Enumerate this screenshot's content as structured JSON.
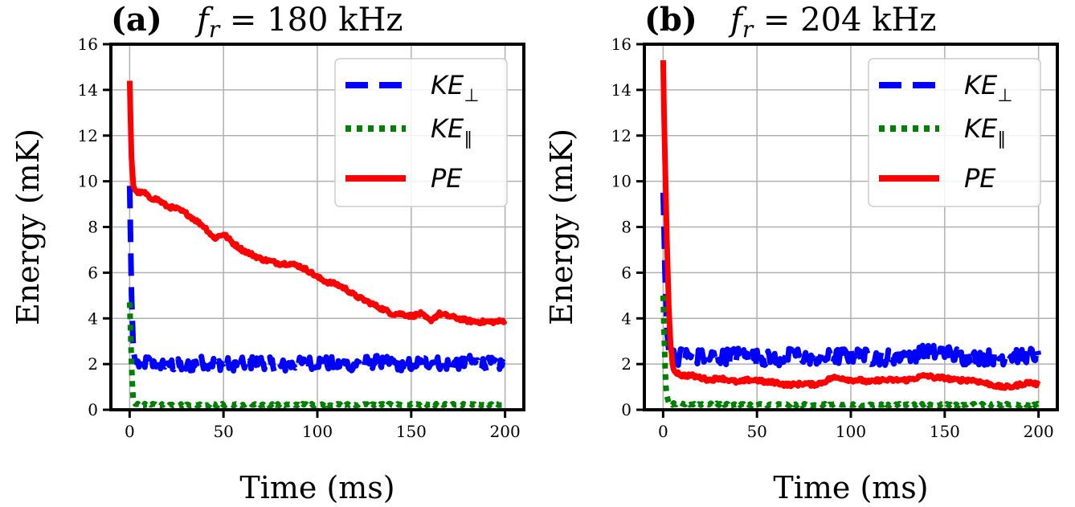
{
  "chart_data": [
    {
      "type": "line",
      "panel_label": "(a)",
      "title_var": "f",
      "title_sub": "r",
      "title_value": " = 180 kHz",
      "xlabel": "Time (ms)",
      "ylabel": "Energy (mK)",
      "xlim": [
        -10,
        210
      ],
      "ylim": [
        0,
        16
      ],
      "xticks": [
        "0",
        "50",
        "100",
        "150",
        "200"
      ],
      "yticks": [
        "0",
        "2",
        "4",
        "6",
        "8",
        "10",
        "12",
        "14",
        "16"
      ],
      "grid": true,
      "legend_position": "top-right",
      "series": [
        {
          "name": "KE",
          "name_sub": "⊥",
          "color": "#0000ff",
          "style": "dashed",
          "x": [
            0,
            0.5,
            1,
            1.5,
            2,
            3,
            5,
            10,
            20,
            30,
            40,
            50,
            60,
            70,
            80,
            90,
            100,
            110,
            120,
            130,
            140,
            150,
            160,
            170,
            180,
            190,
            200
          ],
          "y": [
            9.8,
            7.5,
            5.0,
            3.8,
            2.6,
            2.1,
            2.0,
            2.1,
            2.0,
            1.9,
            2.1,
            2.0,
            2.0,
            2.1,
            1.9,
            2.0,
            2.1,
            2.0,
            2.0,
            2.1,
            2.0,
            2.0,
            2.1,
            2.0,
            2.1,
            2.0,
            2.0
          ],
          "noise": 0.3
        },
        {
          "name": "KE",
          "name_sub": "∥",
          "color": "#008000",
          "style": "dotted",
          "x": [
            0,
            0.5,
            1,
            1.5,
            2,
            3,
            5,
            10,
            50,
            100,
            150,
            200
          ],
          "y": [
            4.7,
            3.5,
            2.0,
            1.0,
            0.35,
            0.25,
            0.22,
            0.22,
            0.22,
            0.22,
            0.22,
            0.22
          ],
          "noise": 0.05
        },
        {
          "name": "PE",
          "name_sub": "",
          "color": "#ff0000",
          "style": "solid",
          "x": [
            0,
            1,
            2,
            3,
            5,
            8,
            10,
            15,
            20,
            25,
            30,
            35,
            40,
            45,
            50,
            55,
            60,
            65,
            70,
            75,
            80,
            85,
            90,
            95,
            100,
            105,
            110,
            115,
            120,
            125,
            130,
            135,
            140,
            145,
            150,
            155,
            160,
            165,
            170,
            175,
            180,
            185,
            190,
            195,
            200
          ],
          "y": [
            14.4,
            11.0,
            9.8,
            9.6,
            9.5,
            9.5,
            9.3,
            9.2,
            8.9,
            8.8,
            8.6,
            8.3,
            8.0,
            7.5,
            7.7,
            7.3,
            7.0,
            6.8,
            6.6,
            6.5,
            6.4,
            6.4,
            6.3,
            6.1,
            5.8,
            5.6,
            5.5,
            5.3,
            5.0,
            4.8,
            4.6,
            4.4,
            4.2,
            4.2,
            4.1,
            4.2,
            3.9,
            4.2,
            4.1,
            4.0,
            3.9,
            3.85,
            3.85,
            3.85,
            3.9
          ],
          "noise": 0.08
        }
      ]
    },
    {
      "type": "line",
      "panel_label": "(b)",
      "title_var": "f",
      "title_sub": "r",
      "title_value": " = 204 kHz",
      "xlabel": "Time (ms)",
      "ylabel": "Energy (mK)",
      "xlim": [
        -10,
        210
      ],
      "ylim": [
        0,
        16
      ],
      "xticks": [
        "0",
        "50",
        "100",
        "150",
        "200"
      ],
      "yticks": [
        "0",
        "2",
        "4",
        "6",
        "8",
        "10",
        "12",
        "14",
        "16"
      ],
      "grid": true,
      "legend_position": "top-right",
      "series": [
        {
          "name": "KE",
          "name_sub": "⊥",
          "color": "#0000ff",
          "style": "dashed",
          "x": [
            0,
            0.5,
            1,
            2,
            3,
            5,
            8,
            10,
            20,
            30,
            40,
            50,
            60,
            70,
            80,
            90,
            100,
            110,
            120,
            130,
            140,
            150,
            160,
            170,
            180,
            190,
            200
          ],
          "y": [
            9.5,
            8.0,
            6.0,
            3.5,
            2.6,
            2.4,
            2.3,
            2.4,
            2.3,
            2.3,
            2.4,
            2.3,
            2.2,
            2.4,
            2.3,
            2.3,
            2.4,
            2.3,
            2.3,
            2.4,
            2.5,
            2.5,
            2.3,
            2.3,
            2.3,
            2.4,
            2.4
          ],
          "noise": 0.35
        },
        {
          "name": "KE",
          "name_sub": "∥",
          "color": "#008000",
          "style": "dotted",
          "x": [
            0,
            0.5,
            1,
            1.5,
            2,
            3,
            5,
            10,
            50,
            100,
            150,
            200
          ],
          "y": [
            5.0,
            3.5,
            2.0,
            1.0,
            0.6,
            0.3,
            0.25,
            0.25,
            0.22,
            0.22,
            0.22,
            0.22
          ],
          "noise": 0.05
        },
        {
          "name": "PE",
          "name_sub": "",
          "color": "#ff0000",
          "style": "solid",
          "x": [
            0,
            0.5,
            1,
            2,
            3,
            4,
            5,
            6,
            8,
            10,
            15,
            20,
            25,
            30,
            35,
            40,
            45,
            50,
            55,
            60,
            65,
            70,
            75,
            80,
            85,
            90,
            95,
            100,
            105,
            110,
            115,
            120,
            125,
            130,
            135,
            140,
            145,
            150,
            155,
            160,
            165,
            170,
            175,
            180,
            185,
            190,
            195,
            200
          ],
          "y": [
            15.3,
            13.0,
            11.0,
            7.5,
            4.5,
            2.8,
            2.0,
            1.7,
            1.6,
            1.5,
            1.5,
            1.4,
            1.3,
            1.4,
            1.3,
            1.2,
            1.3,
            1.3,
            1.2,
            1.2,
            1.1,
            1.1,
            1.15,
            1.1,
            1.2,
            1.4,
            1.4,
            1.3,
            1.3,
            1.2,
            1.3,
            1.3,
            1.3,
            1.3,
            1.4,
            1.5,
            1.4,
            1.4,
            1.3,
            1.3,
            1.3,
            1.2,
            1.1,
            1.0,
            1.0,
            1.1,
            1.2,
            1.1
          ],
          "noise": 0.08
        }
      ]
    }
  ]
}
